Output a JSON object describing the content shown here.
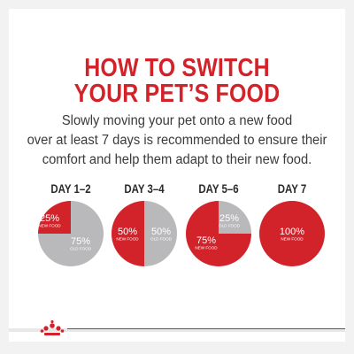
{
  "header": {
    "title_line1": "HOW TO SWITCH",
    "title_line2": "YOUR PET’S FOOD"
  },
  "description": {
    "line1": "Slowly moving your pet onto a new food",
    "line2": "over at least 7 days is recommended to ensure their",
    "line3": "comfort and help them adapt to their new food."
  },
  "colors": {
    "new_food": "#d2232a",
    "old_food": "#b9b9bb",
    "title": "#d2232a"
  },
  "brand": {
    "logo": "crown-logo-icon"
  },
  "chart_data": [
    {
      "type": "pie",
      "title": "DAY 1–2",
      "slices": [
        {
          "label": "NEW FOOD",
          "value": 25,
          "text": "25%"
        },
        {
          "label": "OLD FOOD",
          "value": 75,
          "text": "75%"
        }
      ]
    },
    {
      "type": "pie",
      "title": "DAY 3–4",
      "slices": [
        {
          "label": "NEW FOOD",
          "value": 50,
          "text": "50%"
        },
        {
          "label": "OLD FOOD",
          "value": 50,
          "text": "50%"
        }
      ]
    },
    {
      "type": "pie",
      "title": "DAY 5–6",
      "slices": [
        {
          "label": "NEW FOOD",
          "value": 75,
          "text": "75%"
        },
        {
          "label": "OLD FOOD",
          "value": 25,
          "text": "25%"
        }
      ]
    },
    {
      "type": "pie",
      "title": "DAY 7",
      "slices": [
        {
          "label": "NEW FOOD",
          "value": 100,
          "text": "100%"
        }
      ]
    }
  ]
}
